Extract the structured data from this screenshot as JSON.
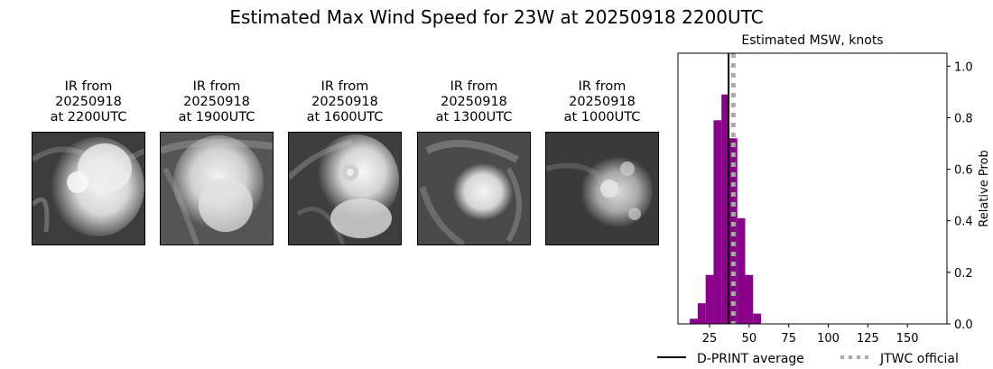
{
  "figure": {
    "title": "Estimated Max Wind Speed for 23W at 20250918 2200UTC"
  },
  "ir_panels": [
    {
      "line1": "IR from",
      "line2": "20250918",
      "line3": "at 2200UTC"
    },
    {
      "line1": "IR from",
      "line2": "20250918",
      "line3": "at 1900UTC"
    },
    {
      "line1": "IR from",
      "line2": "20250918",
      "line3": "at 1600UTC"
    },
    {
      "line1": "IR from",
      "line2": "20250918",
      "line3": "at 1300UTC"
    },
    {
      "line1": "IR from",
      "line2": "20250918",
      "line3": "at 1000UTC"
    }
  ],
  "chart_data": {
    "type": "bar",
    "title": "Estimated MSW, knots",
    "xlabel": "",
    "ylabel": "Relative Prob",
    "xlim": [
      5,
      175
    ],
    "ylim": [
      0,
      1.05
    ],
    "xticks": [
      25,
      50,
      75,
      100,
      125,
      150
    ],
    "yticks": [
      0.0,
      0.2,
      0.4,
      0.6,
      0.8,
      1.0
    ],
    "ytick_labels": [
      "0.0",
      "0.2",
      "0.4",
      "0.6",
      "0.8",
      "1.0"
    ],
    "y_axis_side": "right",
    "bar_color": "#8b008b",
    "bar_width": 5,
    "bars": [
      {
        "x": 15,
        "value": 0.02
      },
      {
        "x": 20,
        "value": 0.08
      },
      {
        "x": 25,
        "value": 0.19
      },
      {
        "x": 30,
        "value": 0.79
      },
      {
        "x": 35,
        "value": 0.89
      },
      {
        "x": 40,
        "value": 0.72
      },
      {
        "x": 45,
        "value": 0.41
      },
      {
        "x": 50,
        "value": 0.19
      },
      {
        "x": 55,
        "value": 0.04
      }
    ],
    "lines": [
      {
        "name": "D-PRINT average",
        "x": 37,
        "color": "#000000",
        "style": "solid"
      },
      {
        "name": "JTWC official",
        "x": 40,
        "color": "#aaaaaa",
        "style": "dotted"
      }
    ],
    "legend_position": "bottom"
  }
}
